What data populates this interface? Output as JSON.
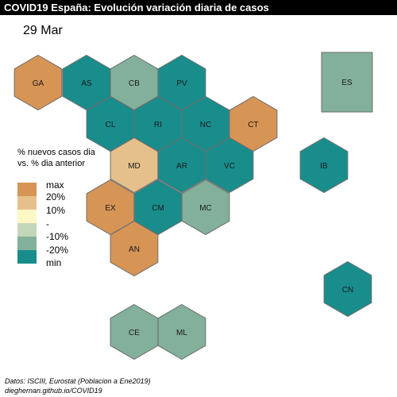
{
  "title": "COVID19 España: Evolución variación diaria de casos",
  "date": "29 Mar",
  "legend": {
    "title_line1": "% nuevos casos dia",
    "title_line2": "vs. % dia anterior",
    "items": [
      {
        "label": "max",
        "color": "#d69455"
      },
      {
        "label": "20%",
        "color": "#e6c08a"
      },
      {
        "label": "10%",
        "color": "#fdf6c5"
      },
      {
        "label": "-",
        "color": "#c3d6b9"
      },
      {
        "label": "-10%",
        "color": "#82b09a"
      },
      {
        "label": "-20%",
        "color": "#198d8c"
      },
      {
        "label": "min",
        "color": "#198d8c"
      }
    ]
  },
  "regions": [
    {
      "code": "GA",
      "color": "#d69455"
    },
    {
      "code": "AS",
      "color": "#198d8c"
    },
    {
      "code": "CB",
      "color": "#82b09a"
    },
    {
      "code": "PV",
      "color": "#198d8c"
    },
    {
      "code": "CL",
      "color": "#198d8c"
    },
    {
      "code": "RI",
      "color": "#198d8c"
    },
    {
      "code": "NC",
      "color": "#198d8c"
    },
    {
      "code": "CT",
      "color": "#d69455"
    },
    {
      "code": "MD",
      "color": "#e6c08a"
    },
    {
      "code": "AR",
      "color": "#198d8c"
    },
    {
      "code": "VC",
      "color": "#198d8c"
    },
    {
      "code": "IB",
      "color": "#198d8c"
    },
    {
      "code": "EX",
      "color": "#d69455"
    },
    {
      "code": "CM",
      "color": "#198d8c"
    },
    {
      "code": "MC",
      "color": "#82b09a"
    },
    {
      "code": "AN",
      "color": "#d69455"
    },
    {
      "code": "CN",
      "color": "#198d8c"
    },
    {
      "code": "CE",
      "color": "#82b09a"
    },
    {
      "code": "ML",
      "color": "#82b09a"
    }
  ],
  "national": {
    "code": "ES",
    "color": "#82b09a"
  },
  "sources_line1": "Datos: ISCIII, Eurostat (Poblacion a Ene2019)",
  "sources_line2": "dieghernan.github.io/COVID19"
}
